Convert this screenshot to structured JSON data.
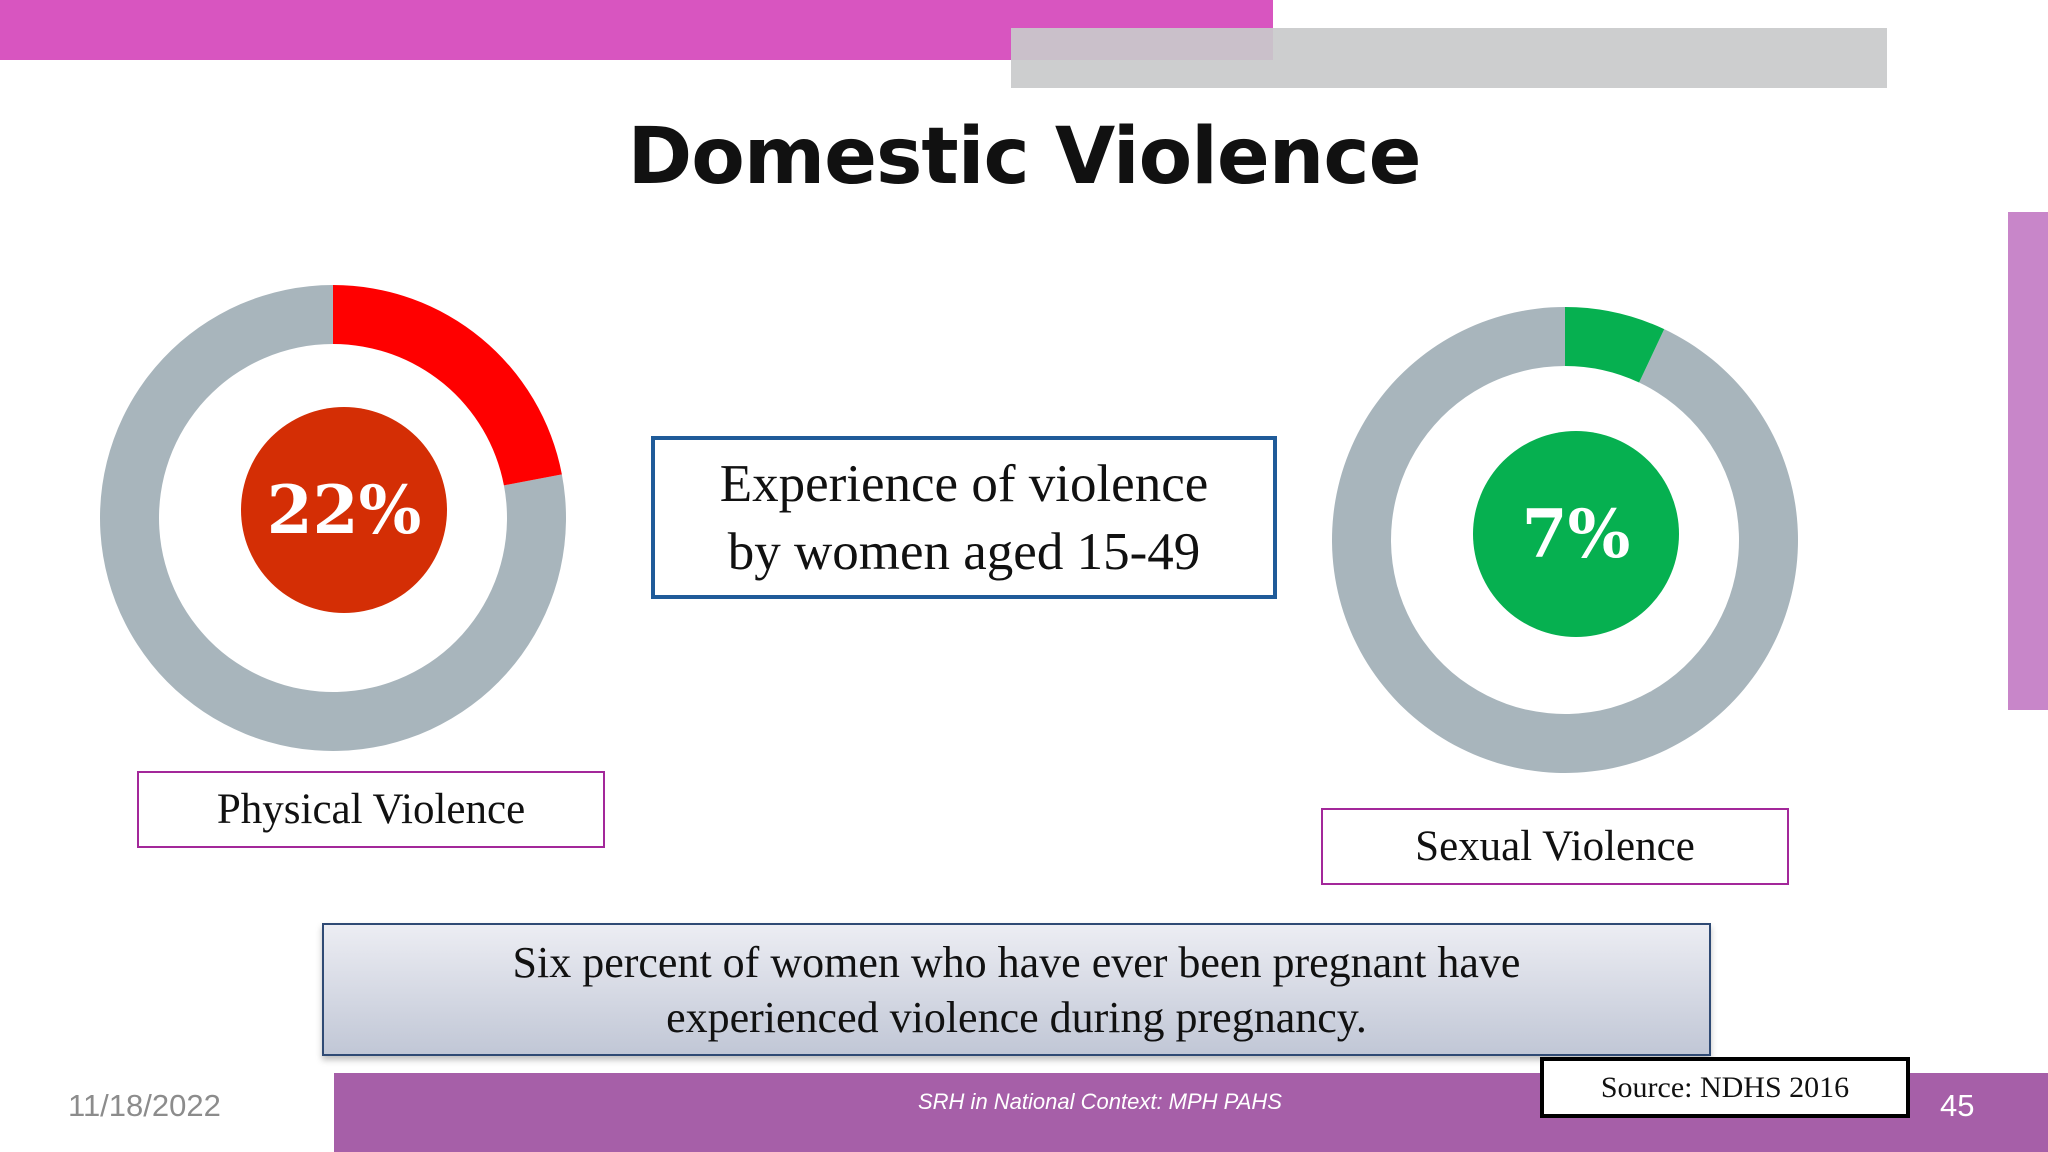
{
  "title": "Domestic Violence",
  "colors": {
    "accent_magenta": "#d855c0",
    "accent_gray": "#c9cacb",
    "footer_purple": "#a65fa8",
    "ring_gray": "#a8b5bc",
    "physical_red": "#ff0000",
    "physical_center": "#d42e05",
    "sexual_green": "#06b050",
    "box_border_blue": "#1f5b99",
    "label_border": "#a3289a"
  },
  "chart_data": [
    {
      "type": "pie",
      "label": "Physical Violence",
      "value_label": "22%",
      "value": 22,
      "total": 100,
      "color": "#ff0000"
    },
    {
      "type": "pie",
      "label": "Sexual Violence",
      "value_label": "7%",
      "value": 7,
      "total": 100,
      "color": "#06b050"
    }
  ],
  "center_box": {
    "line1": "Experience of violence",
    "line2": "by women aged 15-49"
  },
  "note": {
    "line1": "Six percent of women who have ever been pregnant have",
    "line2": "experienced violence during pregnancy."
  },
  "footer": {
    "date": "11/18/2022",
    "center_text": "SRH in National Context: MPH PAHS",
    "source": "Source: NDHS 2016",
    "page_number": "45"
  }
}
